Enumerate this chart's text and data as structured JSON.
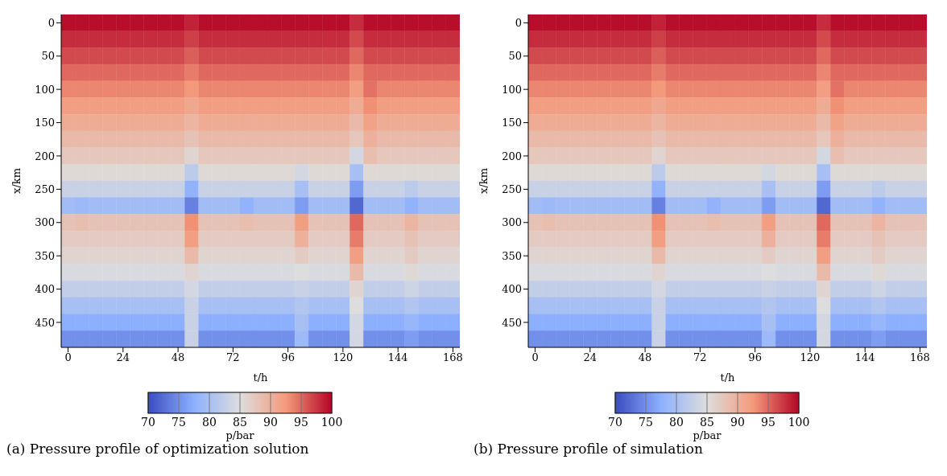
{
  "chart_data": [
    {
      "type": "heatmap",
      "title": "(a) Pressure profile of optimization solution",
      "xlabel": "t/h",
      "ylabel": "x/km",
      "clabel": "p/bar",
      "clim": [
        70,
        100
      ],
      "cticks": [
        70,
        75,
        80,
        85,
        90,
        95,
        100
      ],
      "categories": [
        "0",
        null,
        null,
        null,
        "24",
        null,
        null,
        null,
        "48",
        null,
        null,
        null,
        "72",
        null,
        null,
        null,
        "96",
        null,
        null,
        null,
        "120",
        null,
        null,
        null,
        "144",
        null,
        null,
        null,
        "168"
      ],
      "y_categories": [
        "0",
        null,
        "50",
        null,
        "100",
        null,
        "150",
        null,
        "200",
        null,
        "250",
        null,
        "300",
        null,
        "350",
        null,
        "400",
        null,
        "450",
        null
      ],
      "cells": [
        [
          99.5,
          99.5,
          99.5,
          99.5,
          99.5,
          99.5,
          99.5,
          99.5,
          99.5,
          98.5,
          99.5,
          99.5,
          99.5,
          99.5,
          99.5,
          99.5,
          99.5,
          99.5,
          99.5,
          99.5,
          99.5,
          98,
          99.5,
          99.5,
          99.5,
          99.5,
          99.5,
          99.5,
          99.5
        ],
        [
          98,
          98,
          98,
          98,
          98,
          98,
          98,
          98,
          98,
          97,
          98,
          98,
          98,
          98,
          98,
          98,
          98,
          98,
          98,
          98,
          98,
          96.5,
          98,
          98,
          98,
          98,
          98,
          98,
          98
        ],
        [
          96.5,
          96.5,
          96.5,
          96.5,
          96.5,
          96.5,
          96.5,
          96.5,
          96.5,
          95.5,
          96.5,
          96.5,
          96.5,
          96.5,
          96.5,
          96.5,
          96.5,
          96.5,
          96.5,
          96.5,
          96.5,
          95,
          96.5,
          96.5,
          96.5,
          96.5,
          96.5,
          96.5,
          96.5
        ],
        [
          95,
          95,
          95,
          95,
          95,
          95,
          95,
          95,
          95,
          94,
          95,
          95,
          95,
          95,
          95,
          95,
          95,
          95,
          95,
          95,
          95,
          93.5,
          95,
          95,
          95,
          95,
          95,
          95,
          95
        ],
        [
          93.5,
          93.5,
          93.5,
          93.5,
          93.5,
          93.5,
          93.5,
          93.5,
          93.5,
          92.5,
          93.5,
          93.5,
          93.5,
          93.5,
          93.5,
          93.5,
          93.5,
          93.5,
          93.5,
          93.5,
          93.5,
          92,
          94.5,
          93.5,
          93.5,
          93.5,
          93.5,
          93.5,
          93.5
        ],
        [
          92,
          92,
          92,
          92,
          92,
          92,
          92,
          92,
          92,
          91,
          92,
          92,
          92,
          92,
          92,
          92,
          92,
          92,
          92,
          92,
          92,
          90.5,
          93,
          92,
          92,
          92,
          92,
          92,
          92
        ],
        [
          90.5,
          90.5,
          90.5,
          90.5,
          90.5,
          90.5,
          90.5,
          90.5,
          90.5,
          89.5,
          90.5,
          90.5,
          90.5,
          90.5,
          90.5,
          90.5,
          90.5,
          90.5,
          90.5,
          90.5,
          90.5,
          89,
          91.5,
          90.5,
          90.5,
          90.5,
          90.5,
          90.5,
          90.5
        ],
        [
          89,
          89,
          89,
          89,
          89,
          89,
          89,
          89,
          89,
          88,
          89,
          89,
          89,
          89,
          89,
          89,
          89,
          89,
          89,
          89,
          89,
          87.5,
          90,
          89,
          89,
          89,
          89,
          89,
          89
        ],
        [
          87.5,
          87.5,
          87.5,
          87.5,
          87.5,
          87.5,
          87.5,
          87.5,
          87.5,
          86,
          87.5,
          87.5,
          87.5,
          87.5,
          87.5,
          87.5,
          87.5,
          87.5,
          87.5,
          87.5,
          87.5,
          84,
          88.5,
          87.5,
          87.5,
          87.5,
          87.5,
          87.5,
          87.5
        ],
        [
          85.5,
          85.5,
          85.5,
          85.5,
          85.5,
          85.5,
          85.5,
          85.5,
          85.5,
          82,
          85.5,
          85.5,
          85.5,
          85.5,
          85.5,
          85.5,
          85.5,
          84,
          85.5,
          85.5,
          85.5,
          80,
          85.5,
          85.5,
          85.5,
          85.5,
          85.5,
          85.5,
          85.5
        ],
        [
          83,
          83,
          83,
          83,
          83,
          83,
          83,
          83,
          83,
          78,
          83,
          83,
          83,
          83,
          83,
          83,
          83,
          80,
          83,
          83,
          83,
          76,
          83,
          83,
          83,
          82,
          83,
          83,
          83
        ],
        [
          79.5,
          79,
          79.5,
          79.5,
          79.5,
          79.5,
          79.5,
          79.5,
          79.5,
          74,
          79.5,
          79.5,
          79.5,
          78,
          79.5,
          79.5,
          79.5,
          76,
          79.5,
          79.5,
          79.5,
          72,
          79.5,
          79.5,
          79.5,
          78,
          79.5,
          79.5,
          79.5
        ],
        [
          88,
          88.5,
          88,
          88,
          88,
          88,
          88,
          88,
          88,
          93,
          88,
          88,
          88,
          88.5,
          88,
          88,
          88,
          92,
          88,
          88,
          88,
          95,
          88,
          88,
          88,
          89.5,
          88,
          88,
          88
        ],
        [
          87,
          87,
          87,
          87,
          87,
          87,
          87,
          87,
          87,
          92,
          87,
          87,
          87,
          87,
          87,
          87,
          87,
          90,
          87,
          87,
          87,
          94,
          87,
          87,
          87,
          88,
          87,
          87,
          87
        ],
        [
          86,
          86,
          86,
          86,
          86,
          86,
          86,
          86,
          86,
          89,
          86,
          86,
          86,
          86,
          86,
          86,
          86,
          87,
          86,
          86,
          86,
          92,
          86,
          86,
          86,
          87,
          86,
          86,
          86
        ],
        [
          84.5,
          84.5,
          84.5,
          84.5,
          84.5,
          84.5,
          84.5,
          84.5,
          84.5,
          86,
          84.5,
          84.5,
          84.5,
          84.5,
          84.5,
          84.5,
          84.5,
          85,
          84.5,
          84.5,
          84.5,
          89,
          84.5,
          84.5,
          84.5,
          85.5,
          84.5,
          84.5,
          84.5
        ],
        [
          82.5,
          82.5,
          82.5,
          82.5,
          82.5,
          82.5,
          82.5,
          82.5,
          82.5,
          84,
          82.5,
          82.5,
          82.5,
          82.5,
          82.5,
          82.5,
          82.5,
          83,
          82.5,
          82.5,
          82.5,
          86,
          82.5,
          82.5,
          82.5,
          83.5,
          82.5,
          82.5,
          82.5
        ],
        [
          80,
          80,
          80,
          80,
          80,
          80,
          80,
          80,
          80,
          83,
          80,
          80,
          80,
          80,
          80,
          80,
          80,
          81,
          80,
          80,
          80,
          85,
          80,
          80,
          80,
          81,
          80,
          80,
          80
        ],
        [
          77.5,
          77.5,
          77.5,
          77.5,
          77.5,
          77.5,
          77.5,
          77.5,
          77.5,
          83,
          77.5,
          77.5,
          77.5,
          77.5,
          77.5,
          77.5,
          77.5,
          80,
          77.5,
          77.5,
          77.5,
          84,
          77.5,
          77.5,
          77.5,
          78.5,
          77.5,
          77.5,
          77.5
        ],
        [
          75,
          75,
          75,
          75,
          75,
          75,
          75,
          75,
          75,
          83,
          75,
          75,
          75,
          75,
          75,
          75,
          75,
          79,
          75,
          75,
          75,
          84,
          75,
          75,
          75,
          76,
          75,
          75,
          75
        ]
      ]
    },
    {
      "type": "heatmap",
      "title": "(b) Pressure profile of simulation",
      "xlabel": "t/h",
      "ylabel": "x/km",
      "clabel": "p/bar",
      "clim": [
        70,
        100
      ],
      "cticks": [
        70,
        75,
        80,
        85,
        90,
        95,
        100
      ],
      "categories": [
        "0",
        null,
        null,
        null,
        "24",
        null,
        null,
        null,
        "48",
        null,
        null,
        null,
        "72",
        null,
        null,
        null,
        "96",
        null,
        null,
        null,
        "120",
        null,
        null,
        null,
        "144",
        null,
        null,
        null,
        "168"
      ],
      "y_categories": [
        "0",
        null,
        "50",
        null,
        "100",
        null,
        "150",
        null,
        "200",
        null,
        "250",
        null,
        "300",
        null,
        "350",
        null,
        "400",
        null,
        "450",
        null
      ],
      "cells": [
        [
          99.5,
          99.5,
          99.5,
          99.5,
          99.5,
          99.5,
          99.5,
          99.5,
          99.5,
          98.5,
          99.5,
          99.5,
          99.5,
          99.5,
          99.5,
          99.5,
          99.5,
          99.5,
          99.5,
          99.5,
          99.5,
          98,
          99.5,
          99.5,
          99.5,
          99.5,
          99.5,
          99.5,
          99.5
        ],
        [
          98,
          98,
          98,
          98,
          98,
          98,
          98,
          98,
          98,
          97,
          98,
          98,
          98,
          98,
          98,
          98,
          98,
          98,
          98,
          98,
          98,
          96.5,
          98,
          98,
          98,
          98,
          98,
          98,
          98
        ],
        [
          96.5,
          96.5,
          96.5,
          96.5,
          96.5,
          96.5,
          96.5,
          96.5,
          96.5,
          95.5,
          96.5,
          96.5,
          96.5,
          96.5,
          96.5,
          96.5,
          96.5,
          96.5,
          96.5,
          96.5,
          96.5,
          95,
          96.5,
          96.5,
          96.5,
          96.5,
          96.5,
          96.5,
          96.5
        ],
        [
          95,
          95,
          95,
          95,
          95,
          95,
          95,
          95,
          95,
          94,
          95,
          95,
          95,
          95,
          95,
          95,
          95,
          95,
          95,
          95,
          95,
          93.5,
          95,
          95,
          95,
          95,
          95,
          95,
          95
        ],
        [
          93.5,
          93.5,
          93.5,
          93.5,
          93.5,
          93.5,
          93.5,
          93.5,
          93.5,
          92.5,
          93.5,
          93.5,
          93.5,
          93.5,
          93.5,
          93.5,
          93.5,
          93.5,
          93.5,
          93.5,
          93.5,
          92,
          94.5,
          93.5,
          93.5,
          93.5,
          93.5,
          93.5,
          93.5
        ],
        [
          92,
          92,
          92,
          92,
          92,
          92,
          92,
          92,
          92,
          91,
          92,
          92,
          92,
          92,
          92,
          92,
          92,
          92,
          92,
          92,
          92,
          90.5,
          93,
          92,
          92,
          92,
          92,
          92,
          92
        ],
        [
          90.5,
          90.5,
          90.5,
          90.5,
          90.5,
          90.5,
          90.5,
          90.5,
          90.5,
          89.5,
          90.5,
          90.5,
          90.5,
          90.5,
          90.5,
          90.5,
          90.5,
          90.5,
          90.5,
          90.5,
          90.5,
          89,
          91.5,
          90.5,
          90.5,
          90.5,
          90.5,
          90.5,
          90.5
        ],
        [
          89,
          89,
          89,
          89,
          89,
          89,
          89,
          89,
          89,
          88,
          89,
          89,
          89,
          89,
          89,
          89,
          89,
          89,
          89,
          89,
          89,
          87.5,
          90,
          89,
          89,
          89,
          89,
          89,
          89
        ],
        [
          87.5,
          87.5,
          87.5,
          87.5,
          87.5,
          87.5,
          87.5,
          87.5,
          87.5,
          86,
          87.5,
          87.5,
          87.5,
          87.5,
          87.5,
          87.5,
          87.5,
          87.5,
          87.5,
          87.5,
          87.5,
          84,
          88.5,
          87.5,
          87.5,
          87.5,
          87.5,
          87.5,
          87.5
        ],
        [
          85.5,
          85.5,
          85.5,
          85.5,
          85.5,
          85.5,
          85.5,
          85.5,
          85.5,
          82,
          85.5,
          85.5,
          85.5,
          85.5,
          85.5,
          85.5,
          85.5,
          84,
          85.5,
          85.5,
          85.5,
          80,
          85.5,
          85.5,
          85.5,
          85.5,
          85.5,
          85.5,
          85.5
        ],
        [
          83,
          83,
          83,
          83,
          83,
          83,
          83,
          83,
          83,
          78,
          83,
          83,
          83,
          83,
          83,
          83,
          83,
          80,
          83,
          83,
          83,
          76,
          83,
          83,
          83,
          82,
          83,
          83,
          83
        ],
        [
          79.5,
          79,
          79.5,
          79.5,
          79.5,
          79.5,
          79.5,
          79.5,
          79.5,
          74,
          79.5,
          79.5,
          79.5,
          78,
          79.5,
          79.5,
          79.5,
          76,
          79.5,
          79.5,
          79.5,
          72,
          79.5,
          79.5,
          79.5,
          78,
          79.5,
          79.5,
          79.5
        ],
        [
          88,
          88.5,
          88,
          88,
          88,
          88,
          88,
          88,
          88,
          93,
          88,
          88,
          88,
          88.5,
          88,
          88,
          88,
          92,
          88,
          88,
          88,
          95,
          88,
          88,
          88,
          89.5,
          88,
          88,
          88
        ],
        [
          87,
          87,
          87,
          87,
          87,
          87,
          87,
          87,
          87,
          92,
          87,
          87,
          87,
          87,
          87,
          87,
          87,
          90,
          87,
          87,
          87,
          94,
          87,
          87,
          87,
          88,
          87,
          87,
          87
        ],
        [
          86,
          86,
          86,
          86,
          86,
          86,
          86,
          86,
          86,
          89,
          86,
          86,
          86,
          86,
          86,
          86,
          86,
          87,
          86,
          86,
          86,
          92,
          86,
          86,
          86,
          87,
          86,
          86,
          86
        ],
        [
          84.5,
          84.5,
          84.5,
          84.5,
          84.5,
          84.5,
          84.5,
          84.5,
          84.5,
          86,
          84.5,
          84.5,
          84.5,
          84.5,
          84.5,
          84.5,
          84.5,
          85,
          84.5,
          84.5,
          84.5,
          89,
          84.5,
          84.5,
          84.5,
          85.5,
          84.5,
          84.5,
          84.5
        ],
        [
          82.5,
          82.5,
          82.5,
          82.5,
          82.5,
          82.5,
          82.5,
          82.5,
          82.5,
          84,
          82.5,
          82.5,
          82.5,
          82.5,
          82.5,
          82.5,
          82.5,
          83,
          82.5,
          82.5,
          82.5,
          86,
          82.5,
          82.5,
          82.5,
          83.5,
          82.5,
          82.5,
          82.5
        ],
        [
          80,
          80,
          80,
          80,
          80,
          80,
          80,
          80,
          80,
          83,
          80,
          80,
          80,
          80,
          80,
          80,
          80,
          81,
          80,
          80,
          80,
          85,
          80,
          80,
          80,
          81,
          80,
          80,
          80
        ],
        [
          77.5,
          77.5,
          77.5,
          77.5,
          77.5,
          77.5,
          77.5,
          77.5,
          77.5,
          83,
          77.5,
          77.5,
          77.5,
          77.5,
          77.5,
          77.5,
          77.5,
          80,
          77.5,
          77.5,
          77.5,
          84,
          77.5,
          77.5,
          77.5,
          78.5,
          77.5,
          77.5,
          77.5
        ],
        [
          75,
          75,
          75,
          75,
          75,
          75,
          75,
          75,
          75,
          83,
          75,
          75,
          75,
          75,
          75,
          75,
          75,
          79,
          75,
          75,
          75,
          84,
          75,
          75,
          75,
          76,
          75,
          75,
          75
        ]
      ]
    }
  ]
}
